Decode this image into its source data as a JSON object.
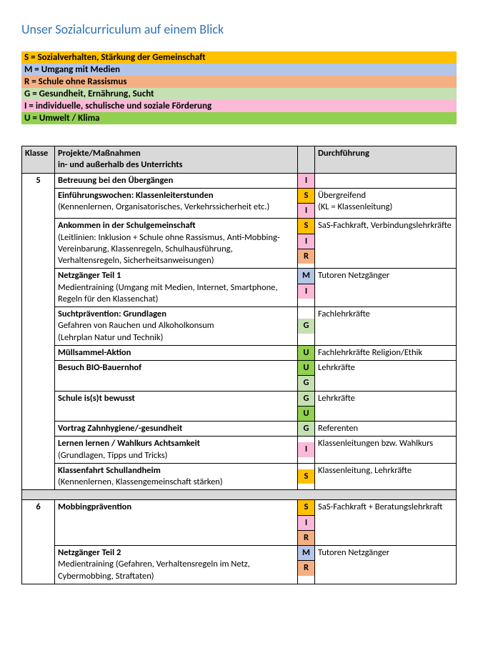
{
  "title": "Unser Sozialcurriculum auf einem Blick",
  "colors": {
    "S": "#ffc000",
    "M": "#b4c6e7",
    "R": "#f4b083",
    "G": "#c5e0b3",
    "I": "#fbb9d8",
    "U": "#92d050",
    "hdr": "#d9d9d9"
  },
  "legend": [
    {
      "code": "S",
      "text": "S = Sozialverhalten, Stärkung der Gemeinschaft"
    },
    {
      "code": "M",
      "text": "M = Umgang mit Medien"
    },
    {
      "code": "R",
      "text": "R = Schule ohne Rassismus"
    },
    {
      "code": "G",
      "text": "G = Gesundheit, Ernährung, Sucht"
    },
    {
      "code": "I",
      "text": "I = individuelle, schulische und soziale Förderung"
    },
    {
      "code": "U",
      "text": "U = Umwelt / Klima"
    }
  ],
  "headers": {
    "klasse": "Klasse",
    "projekte_l1": "Projekte/Maßnahmen",
    "projekte_l2": "in- und außerhalb des Unterrichts",
    "durch": "Durchführung"
  },
  "rows": [
    {
      "klasse": "5",
      "title": "Betreuung bei den Übergängen",
      "sub": "",
      "tags": [
        "I"
      ],
      "durch": ""
    },
    {
      "klasse": "",
      "title": "Einführungswochen: Klassenleiterstunden",
      "sub": "(Kennenlernen,  Organisatorisches, Verkehrssicherheit etc.)",
      "tags": [
        "S",
        "I"
      ],
      "durch": "Übergreifend\n(KL = Klassenleitung)"
    },
    {
      "klasse": "",
      "title": "Ankommen in der Schulgemeinschaft",
      "sub": "(Leitlinien: Inklusion + Schule ohne Rassismus, Anti-Mobbing-Vereinbarung, Klassenregeln, Schulhausführung, Verhaltensregeln, Sicherheitsanweisungen)",
      "tags": [
        "S",
        "I",
        "R"
      ],
      "durch": "SaS-Fachkraft, Verbindungslehrkräfte"
    },
    {
      "klasse": "",
      "title": "Netzgänger Teil 1",
      "sub": "Medientraining (Umgang mit Medien, Internet, Smartphone, Regeln für den Klassenchat)",
      "tags": [
        "M",
        "I"
      ],
      "durch": "Tutoren Netzgänger"
    },
    {
      "klasse": "",
      "title": "Suchtprävention: Grundlagen",
      "sub": "Gefahren von Rauchen und Alkoholkonsum\n(Lehrplan Natur und Technik)",
      "tags": [
        "G"
      ],
      "durch": "Fachlehrkräfte",
      "tagsVAlign": "middle"
    },
    {
      "klasse": "",
      "title": "Müllsammel-Aktion",
      "sub": "",
      "tags": [
        "U"
      ],
      "durch": "Fachlehrkräfte Religion/Ethik"
    },
    {
      "klasse": "",
      "title": "Besuch BIO-Bauernhof",
      "sub": "",
      "tags": [
        "U",
        "G"
      ],
      "durch": "Lehrkräfte"
    },
    {
      "klasse": "",
      "title": "Schule is(s)t bewusst",
      "sub": "",
      "tags": [
        "G",
        "U"
      ],
      "durch": "Lehrkräfte"
    },
    {
      "klasse": "",
      "title": "Vortrag Zahnhygiene/-gesundheit",
      "sub": "",
      "tags": [
        "G"
      ],
      "durch": "Referenten"
    },
    {
      "klasse": "",
      "title": "Lernen lernen / Wahlkurs Achtsamkeit",
      "sub": "(Grundlagen, Tipps und Tricks)",
      "tags": [
        "I"
      ],
      "durch": "Klassenleitungen bzw. Wahlkurs",
      "tagsVAlign": "middle"
    },
    {
      "klasse": "",
      "title": "Klassenfahrt Schullandheim",
      "sub": "(Kennenlernen, Klassengemeinschaft stärken)",
      "tags": [
        "S"
      ],
      "durch": "Klassenleitung, Lehrkräfte",
      "tagsVAlign": "middle"
    },
    {
      "spacer": true
    },
    {
      "klasse": "6",
      "title": "Mobbingprävention",
      "sub": "",
      "tags": [
        "S",
        "I",
        "R"
      ],
      "durch": "SaS-Fachkraft + Beratungslehrkraft"
    },
    {
      "klasse": "",
      "title": "Netzgänger Teil 2",
      "sub": "Medientraining (Gefahren, Verhaltensregeln im Netz, Cybermobbing, Straftaten)",
      "tags": [
        "M",
        "R"
      ],
      "durch": "Tutoren Netzgänger"
    }
  ]
}
